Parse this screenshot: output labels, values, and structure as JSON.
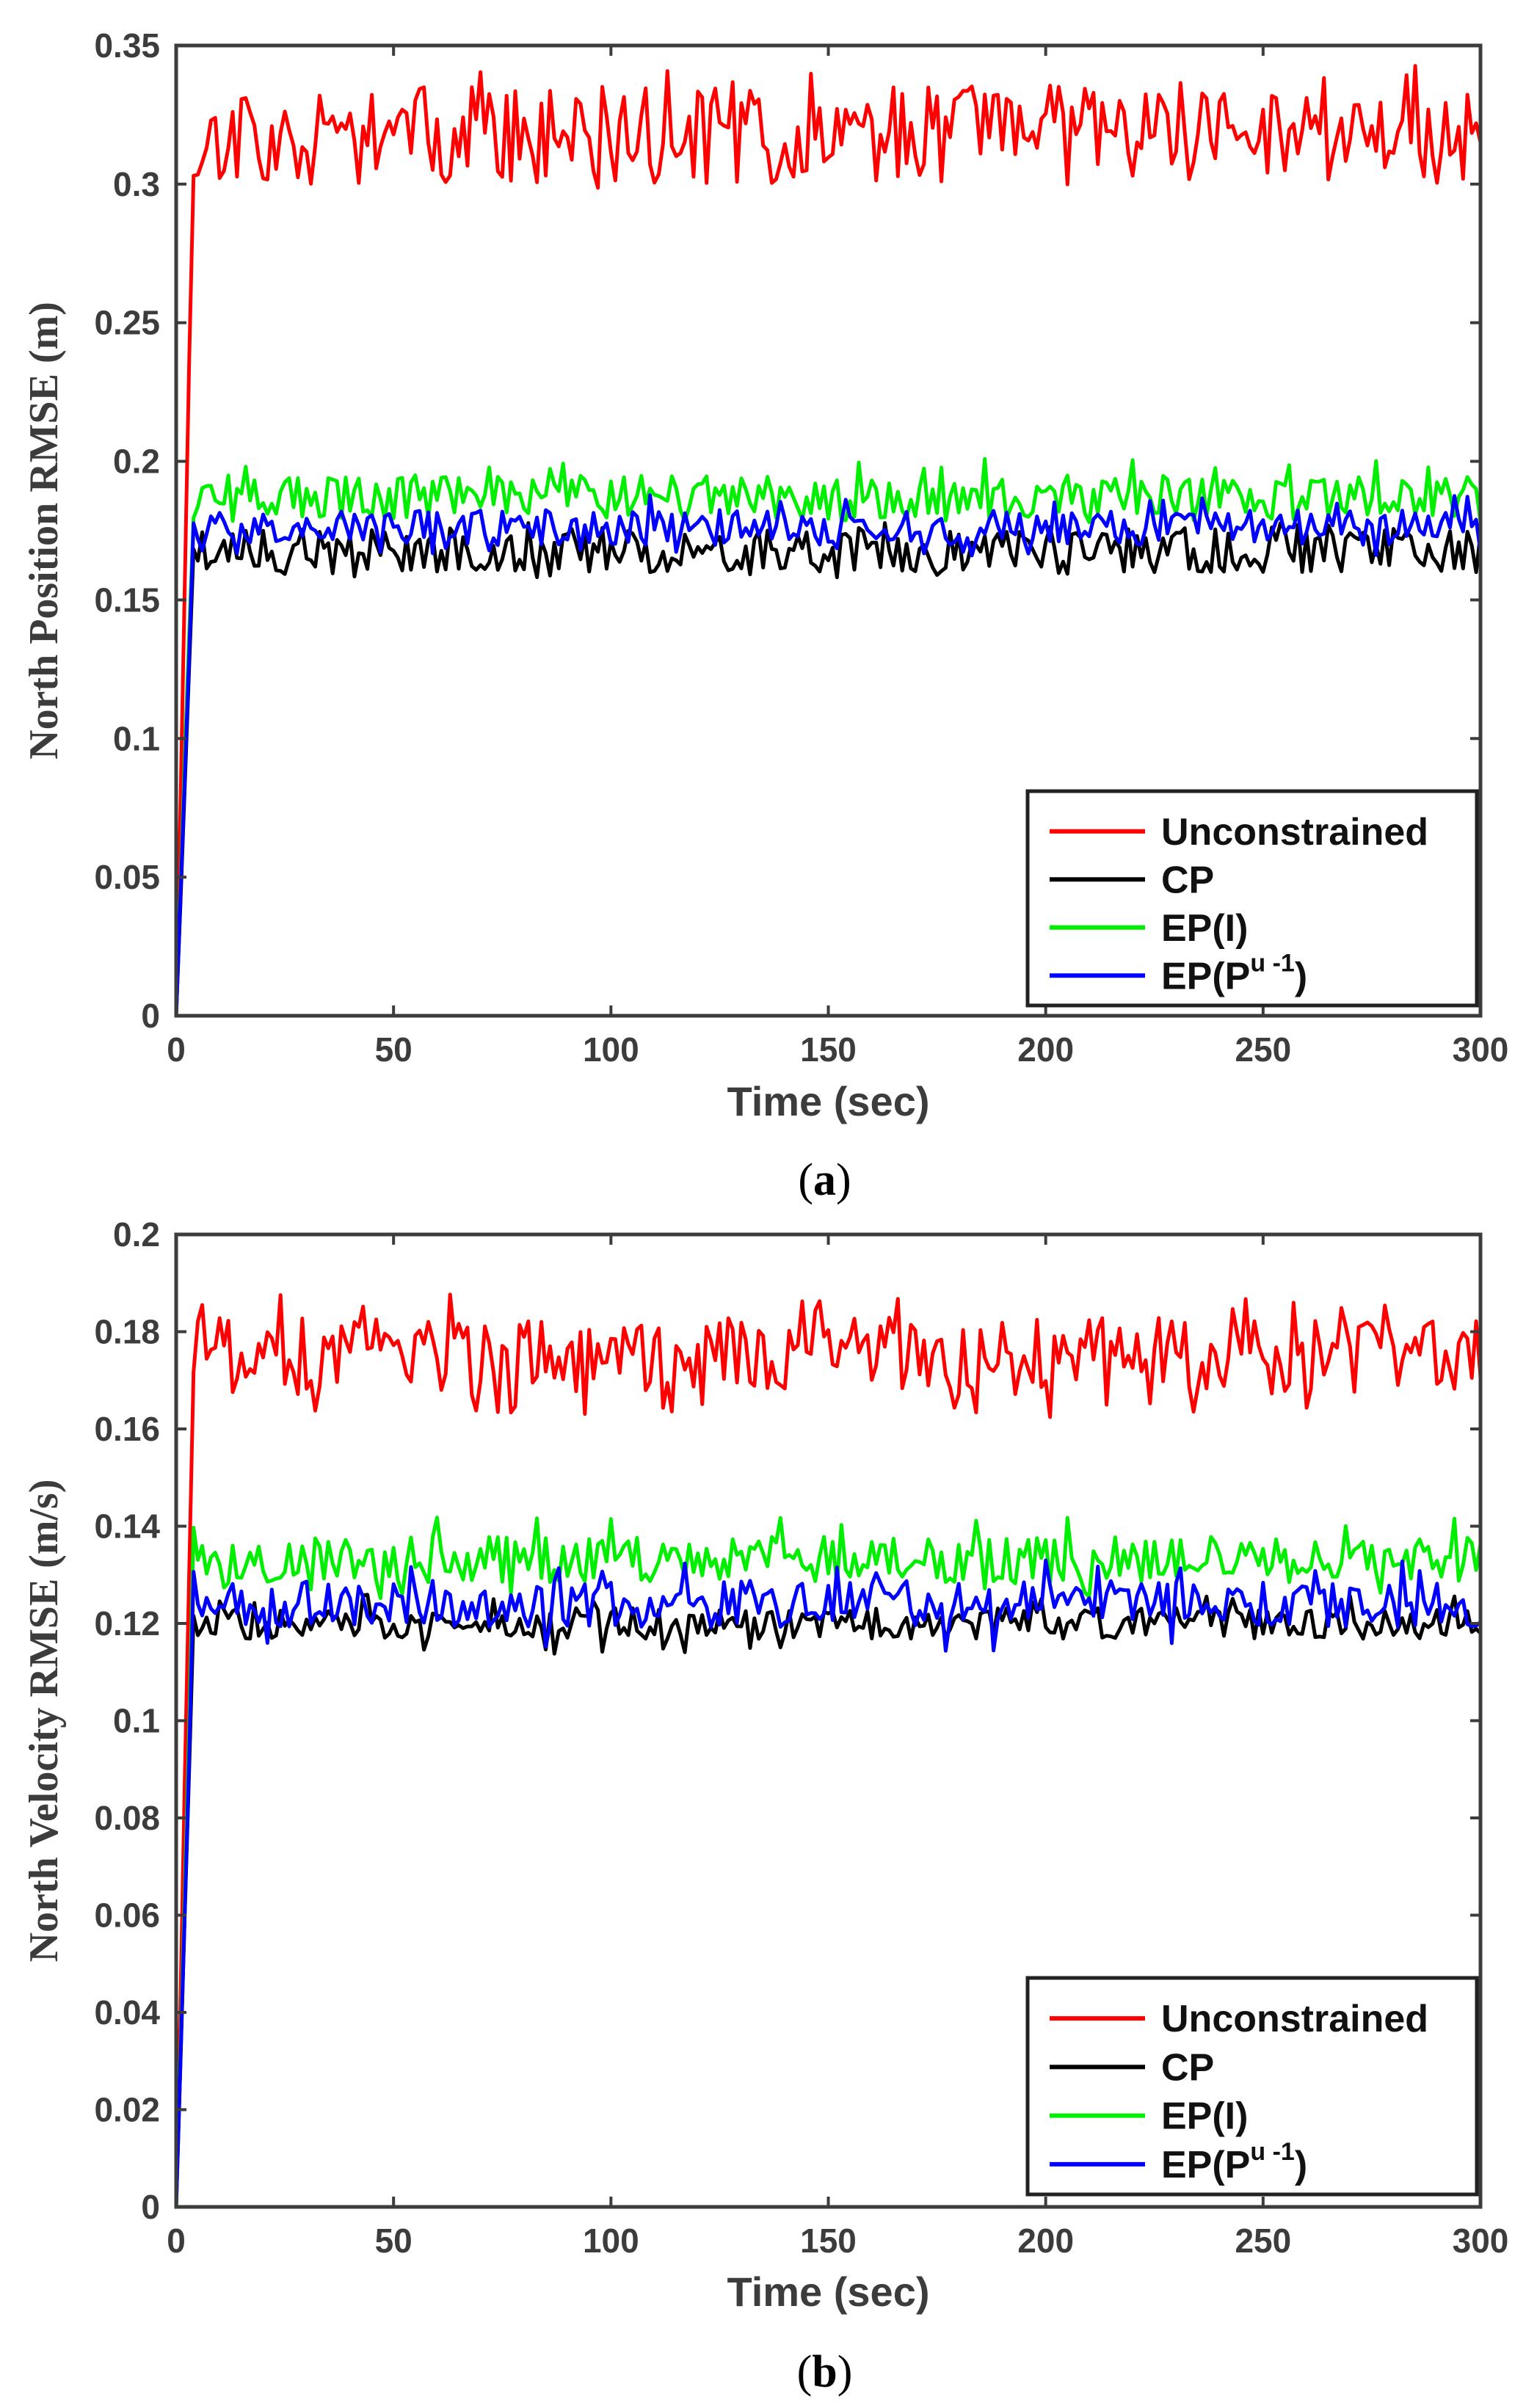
{
  "chart_data": [
    {
      "type": "line",
      "title": "",
      "caption": "(a)",
      "caption_letter": "a",
      "xlabel": "Time (sec)",
      "ylabel": "North Position RMSE (m)",
      "xlim": [
        0,
        300
      ],
      "ylim": [
        0,
        0.35
      ],
      "xticks": [
        0,
        50,
        100,
        150,
        200,
        250,
        300
      ],
      "xtick_labels": [
        "0",
        "50",
        "100",
        "150",
        "200",
        "250",
        "300"
      ],
      "yticks": [
        0,
        0.05,
        0.1,
        0.15,
        0.2,
        0.25,
        0.3,
        0.35
      ],
      "ytick_labels": [
        "0",
        "0.05",
        "0.1",
        "0.15",
        "0.2",
        "0.25",
        "0.3",
        "0.35"
      ],
      "grid": false,
      "legend_position": "bottom-right",
      "series": [
        {
          "name": "Unconstrained",
          "legend_label": "Unconstrained",
          "color": "#ff0000",
          "start": 0,
          "level": 0.318,
          "amplitude": 0.011,
          "peak": 0.343,
          "trough": 0.298,
          "seed": 11
        },
        {
          "name": "CP",
          "legend_label": "CP",
          "color": "#000000",
          "start": 0,
          "level": 0.168,
          "amplitude": 0.005,
          "peak": 0.178,
          "trough": 0.158,
          "seed": 23
        },
        {
          "name": "EP(I)",
          "legend_label": "EP(I)",
          "color": "#00ee00",
          "start": 0,
          "level": 0.187,
          "amplitude": 0.005,
          "peak": 0.201,
          "trough": 0.178,
          "seed": 37
        },
        {
          "name": "EP(P^u^-1)",
          "legend_label": "EP(P",
          "legend_super": "u -1",
          "legend_close": ")",
          "color": "#0000ff",
          "start": 0,
          "level": 0.176,
          "amplitude": 0.004,
          "peak": 0.188,
          "trough": 0.166,
          "seed": 53
        }
      ]
    },
    {
      "type": "line",
      "title": "",
      "caption": "(b)",
      "caption_letter": "b",
      "xlabel": "Time (sec)",
      "ylabel": "North Velocity RMSE (m/s)",
      "xlim": [
        0,
        300
      ],
      "ylim": [
        0,
        0.2
      ],
      "xticks": [
        0,
        50,
        100,
        150,
        200,
        250,
        300
      ],
      "xtick_labels": [
        "0",
        "50",
        "100",
        "150",
        "200",
        "250",
        "300"
      ],
      "yticks": [
        0,
        0.02,
        0.04,
        0.06,
        0.08,
        0.1,
        0.12,
        0.14,
        0.16,
        0.18,
        0.2
      ],
      "ytick_labels": [
        "0",
        "0.02",
        "0.04",
        "0.06",
        "0.08",
        "0.1",
        "0.12",
        "0.14",
        "0.16",
        "0.18",
        "0.2"
      ],
      "grid": false,
      "legend_position": "bottom-right",
      "series": [
        {
          "name": "Unconstrained",
          "legend_label": "Unconstrained",
          "color": "#ff0000",
          "start": 0,
          "level": 0.175,
          "amplitude": 0.005,
          "peak": 0.188,
          "trough": 0.162,
          "seed": 71
        },
        {
          "name": "CP",
          "legend_label": "CP",
          "color": "#000000",
          "start": 0,
          "level": 0.12,
          "amplitude": 0.002,
          "peak": 0.126,
          "trough": 0.113,
          "seed": 83
        },
        {
          "name": "EP(I)",
          "legend_label": "EP(I)",
          "color": "#00ee00",
          "start": 0,
          "level": 0.133,
          "amplitude": 0.003,
          "peak": 0.142,
          "trough": 0.125,
          "seed": 97
        },
        {
          "name": "EP(P^u^-1)",
          "legend_label": "EP(P",
          "legend_super": "u -1",
          "legend_close": ")",
          "color": "#0000ff",
          "start": 0,
          "level": 0.124,
          "amplitude": 0.003,
          "peak": 0.133,
          "trough": 0.114,
          "seed": 109
        }
      ]
    }
  ]
}
